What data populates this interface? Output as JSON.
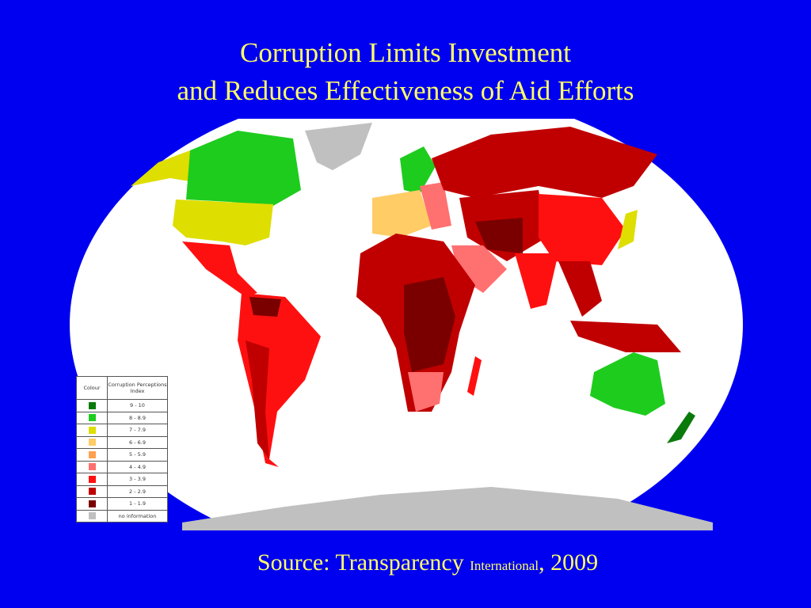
{
  "title_line1": "Corruption Limits Investment",
  "title_line2": "and Reduces Effectiveness of Aid Efforts",
  "legend": {
    "header_colour": "Colour",
    "header_index": "Corruption Perceptions Index",
    "items": [
      {
        "range": "9 - 10",
        "color": "#0a7a0a"
      },
      {
        "range": "8 - 8.9",
        "color": "#1ecc1e"
      },
      {
        "range": "7 - 7.9",
        "color": "#dede00"
      },
      {
        "range": "6 - 6.9",
        "color": "#ffcc66"
      },
      {
        "range": "5 - 5.9",
        "color": "#ffa050"
      },
      {
        "range": "4 - 4.9",
        "color": "#ff7070"
      },
      {
        "range": "3 - 3.9",
        "color": "#ff1010"
      },
      {
        "range": "2 - 2.9",
        "color": "#c00000"
      },
      {
        "range": "1 - 1.9",
        "color": "#7a0000"
      },
      {
        "range": "no information",
        "color": "#c0c0c0"
      }
    ]
  },
  "source": {
    "prefix": "Source: Transparency ",
    "small": "International",
    "suffix": ", 2009"
  }
}
